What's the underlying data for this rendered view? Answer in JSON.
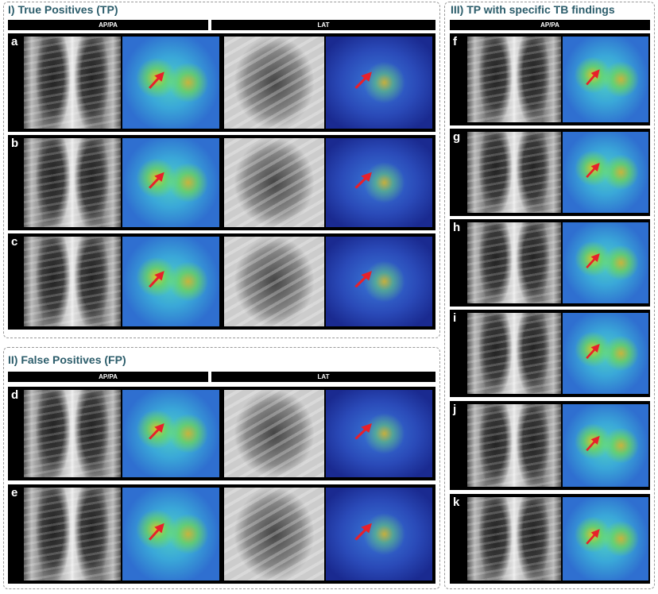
{
  "panels": {
    "tp": {
      "title": "I) True Positives (TP)",
      "headers": [
        "AP/PA",
        "LAT"
      ],
      "rows": [
        "a",
        "b",
        "c"
      ]
    },
    "fp": {
      "title": "II) False Positives (FP)",
      "headers": [
        "AP/PA",
        "LAT"
      ],
      "rows": [
        "d",
        "e"
      ]
    },
    "tb": {
      "title": "III) TP with specific TB findings",
      "headers": [
        "AP/PA"
      ],
      "rows": [
        "f",
        "g",
        "h",
        "i",
        "j",
        "k"
      ]
    }
  },
  "colors": {
    "title": "#2c5d6b",
    "arrow": "#e8202a",
    "outline": "#c0201a"
  }
}
